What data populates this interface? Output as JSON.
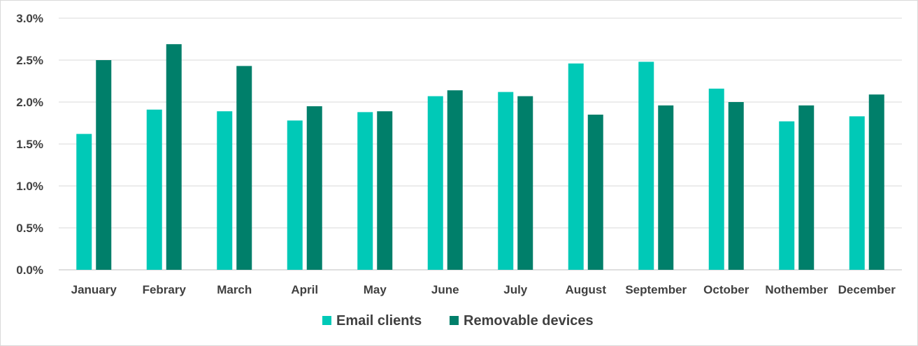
{
  "chart_data": {
    "type": "bar",
    "title": "",
    "xlabel": "",
    "ylabel": "",
    "ylim": [
      0,
      3.0
    ],
    "y_ticks": [
      "0.0%",
      "0.5%",
      "1.0%",
      "1.5%",
      "2.0%",
      "2.5%",
      "3.0%"
    ],
    "y_tick_values": [
      0,
      0.5,
      1.0,
      1.5,
      2.0,
      2.5,
      3.0
    ],
    "grid": true,
    "legend_position": "bottom",
    "categories": [
      "January",
      "Febrary",
      "March",
      "April",
      "May",
      "June",
      "July",
      "August",
      "September",
      "October",
      "Nothember",
      "December"
    ],
    "series": [
      {
        "name": "Email clients",
        "color": "#00c9b7",
        "values": [
          1.62,
          1.91,
          1.89,
          1.78,
          1.88,
          2.07,
          2.12,
          2.46,
          2.48,
          2.16,
          1.77,
          1.83
        ]
      },
      {
        "name": "Removable devices",
        "color": "#007f6a",
        "values": [
          2.5,
          2.69,
          2.43,
          1.95,
          1.89,
          2.14,
          2.07,
          1.85,
          1.96,
          2.0,
          1.96,
          2.09
        ]
      }
    ]
  }
}
